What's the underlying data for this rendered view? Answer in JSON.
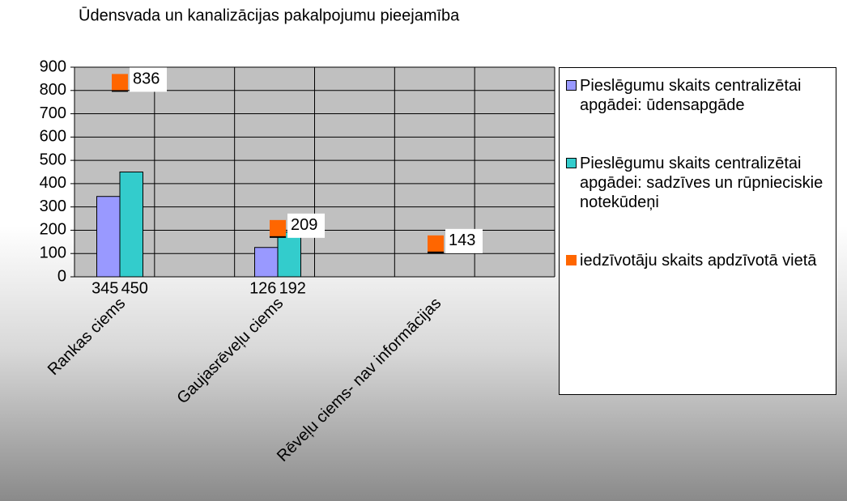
{
  "chart_data": {
    "type": "bar",
    "title": "Ūdensvada un kanalizācijas pakalpojumu pieejamība",
    "categories": [
      "Rankas ciems",
      "Gaujasrēveļu ciems",
      "Rēveļu ciems- nav informācijas"
    ],
    "series": [
      {
        "name": "Pieslēgumu skaits centralizētai apgādei: ūdensapgāde",
        "color": "#9999ff",
        "values": [
          345,
          126,
          null
        ]
      },
      {
        "name": "Pieslēgumu skaits centralizētai apgādei: sadzīves un rūpnieciskie notekūdeņi",
        "color": "#33cccc",
        "values": [
          450,
          192,
          null
        ]
      },
      {
        "name": "iedzīvotāju  skaits apdzīvotā vietā",
        "color": "#ff6600",
        "type": "marker",
        "values": [
          836,
          209,
          143
        ]
      }
    ],
    "ylim": [
      0,
      900
    ],
    "yticks": [
      0,
      100,
      200,
      300,
      400,
      500,
      600,
      700,
      800,
      900
    ],
    "grid": true,
    "legend": "right"
  }
}
